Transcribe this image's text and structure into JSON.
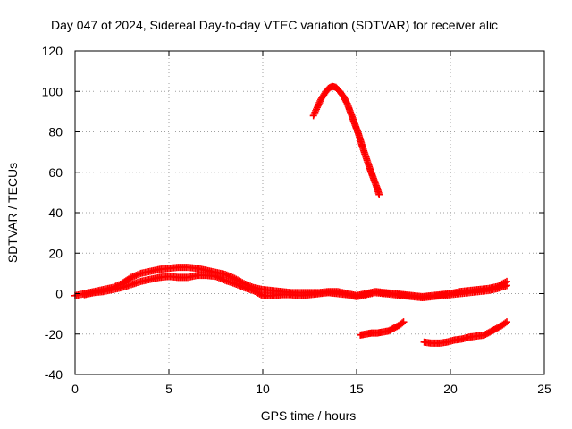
{
  "chart_data": {
    "type": "scatter",
    "title": "Day 047 of 2024, Sidereal Day-to-day VTEC variation (SDTVAR) for receiver alic",
    "xlabel": "GPS time / hours",
    "ylabel": "SDTVAR / TECUs",
    "xlim": [
      0,
      25
    ],
    "ylim": [
      -40,
      120
    ],
    "xticks": [
      0,
      5,
      10,
      15,
      20,
      25
    ],
    "yticks": [
      -40,
      -20,
      0,
      20,
      40,
      60,
      80,
      100,
      120
    ],
    "xtick_labels": [
      "0",
      "5",
      "10",
      "15",
      "20",
      "25"
    ],
    "ytick_labels": [
      "-40",
      "-20",
      "0",
      "20",
      "40",
      "60",
      "80",
      "100",
      "120"
    ],
    "grid": true,
    "marker": "+",
    "marker_color": "#ff0000",
    "series": [
      {
        "name": "track-main-upper",
        "x": [
          0,
          0.5,
          1,
          1.5,
          2,
          2.5,
          3,
          3.5,
          4,
          4.5,
          5,
          5.5,
          6,
          6.5,
          7,
          7.5,
          8,
          8.5,
          9,
          9.5,
          10,
          10.5,
          11,
          11.5,
          12,
          12.5,
          13,
          13.5,
          14,
          14.5,
          15,
          15.5,
          16,
          16.5,
          17,
          17.5,
          18,
          18.5,
          19,
          19.5,
          20,
          20.5,
          21,
          21.5,
          22,
          22.5,
          23
        ],
        "y": [
          -1,
          0,
          1,
          2,
          3,
          5,
          8,
          10,
          11,
          12,
          12.5,
          13,
          13,
          12.5,
          11.5,
          10.5,
          9.5,
          7.5,
          5,
          3,
          2,
          1.5,
          1,
          0.5,
          0.5,
          0.5,
          0.5,
          1,
          1,
          0,
          -1,
          0,
          1,
          0.5,
          0,
          -0.5,
          -1,
          -1.5,
          -1,
          -0.5,
          0,
          1,
          1.5,
          2,
          2.5,
          3.5,
          6
        ]
      },
      {
        "name": "track-main-lower",
        "x": [
          0.5,
          1,
          1.5,
          2,
          2.5,
          3,
          3.5,
          4,
          4.5,
          5,
          5.5,
          6,
          6.5,
          7,
          7.5,
          8,
          8.5,
          9,
          9.5,
          10,
          10.5,
          11,
          11.5,
          12,
          12.5,
          13,
          13.5,
          14,
          14.5,
          15,
          16,
          17,
          18,
          18.5,
          19,
          20,
          21,
          22,
          22.5,
          23
        ],
        "y": [
          -0.5,
          0.5,
          1,
          2,
          3,
          4.5,
          6,
          7,
          8,
          8.5,
          8,
          8,
          9,
          9,
          8.5,
          6.5,
          5,
          3,
          1.5,
          -1,
          -1,
          -0.5,
          -0.5,
          -1,
          -0.5,
          0,
          0.5,
          0,
          -0.5,
          -1.5,
          0.5,
          -0.5,
          -1.5,
          -2,
          -1.5,
          -0.5,
          0.5,
          1.5,
          2.5,
          4
        ]
      },
      {
        "name": "track-arc",
        "x": [
          12.7,
          12.9,
          13.1,
          13.3,
          13.5,
          13.7,
          13.9,
          14.1,
          14.3,
          14.5,
          14.7,
          14.9,
          15.1,
          15.3,
          15.5,
          15.7,
          15.9,
          16.1,
          16.2
        ],
        "y": [
          88,
          92,
          96,
          99,
          101.5,
          102.5,
          102,
          100,
          97.5,
          94,
          89,
          84,
          79,
          73,
          67.5,
          62,
          57,
          52,
          49
        ]
      },
      {
        "name": "track-neg-left",
        "x": [
          15.2,
          15.5,
          15.8,
          16.1,
          16.4,
          16.7,
          17,
          17.3,
          17.5
        ],
        "y": [
          -20.5,
          -20,
          -19.5,
          -19.5,
          -19,
          -18.5,
          -17,
          -15.5,
          -14
        ]
      },
      {
        "name": "track-neg-right",
        "x": [
          18.6,
          19,
          19.4,
          19.8,
          20.2,
          20.6,
          21,
          21.4,
          21.8,
          22.1,
          22.4,
          22.7,
          23
        ],
        "y": [
          -24,
          -24.5,
          -24.5,
          -24,
          -23,
          -22.5,
          -21.5,
          -21,
          -20.5,
          -19,
          -17.5,
          -16,
          -14
        ]
      }
    ]
  }
}
